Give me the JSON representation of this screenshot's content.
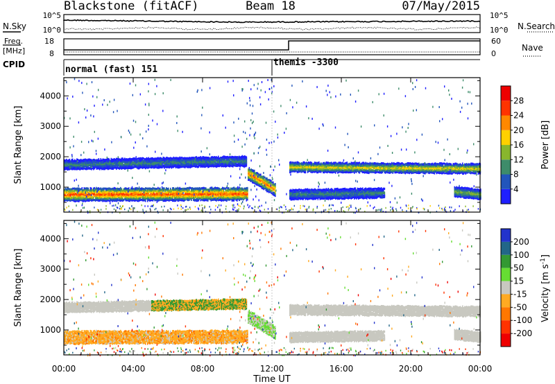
{
  "title": {
    "station": "Blackstone (fitACF)",
    "beam": "Beam 18",
    "date": "07/May/2015"
  },
  "noise_panel": {
    "left_label": "N.Sky",
    "right_label": "N.Search",
    "tick_top": "10^5",
    "tick_bottom": "10^0"
  },
  "freq_panel": {
    "left_label_line1": "Freq.",
    "left_label_line2": "[MHz]",
    "right_label": "Nave",
    "left_ticks": [
      "18",
      "8"
    ],
    "right_ticks": [
      "60",
      "0"
    ]
  },
  "cpid_panel": {
    "label": "CPID",
    "modes": [
      "normal (fast) 151",
      "themis -3300"
    ]
  },
  "power_panel": {
    "ylabel": "Slant Range [km]",
    "yticks": [
      "1000",
      "2000",
      "3000",
      "4000"
    ],
    "colorbar_label": "Power [dB]",
    "colorbar_ticks": [
      "4",
      "8",
      "12",
      "16",
      "20",
      "24",
      "28"
    ],
    "colors": [
      "#1f1fff",
      "#2255bb",
      "#3d8c6a",
      "#88b62d",
      "#ffd000",
      "#ff8800",
      "#ff3300",
      "#ee0000"
    ]
  },
  "velocity_panel": {
    "ylabel": "Slant Range [km]",
    "yticks": [
      "1000",
      "2000",
      "3000",
      "4000"
    ],
    "colorbar_label": "Velocity [m s",
    "colorbar_unit_exp": "-1",
    "colorbar_ticks": [
      "200",
      "100",
      "50",
      "15",
      "-15",
      "-50",
      "-100",
      "-200"
    ],
    "colors": [
      "#2233cc",
      "#226688",
      "#339933",
      "#66dd33",
      "#c8c8c0",
      "#ffaa22",
      "#ff7700",
      "#ff3300",
      "#ee0000"
    ]
  },
  "x_axis": {
    "label": "Time UT",
    "ticks": [
      "00:00",
      "04:00",
      "08:00",
      "12:00",
      "16:00",
      "20:00",
      "00:00"
    ]
  },
  "chart_data": {
    "type": "heatmap",
    "title": "Blackstone (fitACF)  Beam 18  07/May/2015",
    "xlabel": "Time UT",
    "ylabel": "Slant Range [km]",
    "xlim_hours": [
      0,
      24
    ],
    "ylim_km": [
      180,
      4600
    ],
    "cpid_switch_hour": 12.0,
    "freq_switch_hour": 13.0,
    "echo_bands": [
      {
        "name": "main",
        "start_hour": 0.0,
        "end_hour": 10.6,
        "range_km": [
          800,
          820
        ],
        "peak_power_db": 28
      },
      {
        "name": "main",
        "start_hour": 10.6,
        "end_hour": 12.2,
        "range_km": [
          1500,
          950
        ],
        "peak_power_db": 26
      },
      {
        "name": "upper",
        "start_hour": 0.0,
        "end_hour": 10.5,
        "range_km": [
          1780,
          1900
        ],
        "peak_power_db": 12
      },
      {
        "name": "upper-late",
        "start_hour": 13.0,
        "end_hour": 24.0,
        "range_km": [
          1700,
          1650
        ],
        "peak_power_db": 20
      },
      {
        "name": "lower-late",
        "start_hour": 13.0,
        "end_hour": 18.5,
        "range_km": [
          800,
          850
        ],
        "peak_power_db": 12
      },
      {
        "name": "lower-late-2",
        "start_hour": 22.5,
        "end_hour": 24.0,
        "range_km": [
          900,
          800
        ],
        "peak_power_db": 16
      }
    ],
    "power_scale_db": [
      0,
      32
    ],
    "velocity_scale_ms": [
      -250,
      250
    ]
  }
}
